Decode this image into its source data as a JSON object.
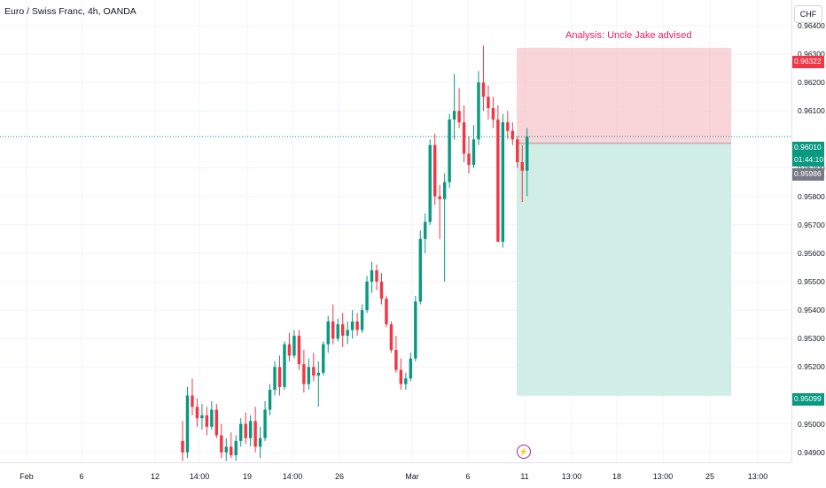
{
  "header": {
    "symbol_title": "Euro / Swiss Franc, 4h, OANDA",
    "currency_button": "CHF"
  },
  "annotation": {
    "text": "Analysis: Uncle Jake advised"
  },
  "price_axis": {
    "labels": [
      "0.96400",
      "0.96300",
      "0.96200",
      "0.96100",
      "0.95900",
      "0.95800",
      "0.95700",
      "0.95600",
      "0.95500",
      "0.95400",
      "0.95300",
      "0.95200",
      "0.95000",
      "0.94900"
    ],
    "tags": {
      "stop_loss": "0.96322",
      "current_price": "0.96010",
      "countdown": "01:44:10",
      "entry": "0.95986",
      "take_profit": "0.95099"
    }
  },
  "time_axis": {
    "labels": [
      "Feb",
      "6",
      "12",
      "14:00",
      "19",
      "14:00",
      "26",
      "Mar",
      "6",
      "11",
      "13:00",
      "18",
      "13:00",
      "25",
      "13:00"
    ]
  },
  "colors": {
    "up": "#089981",
    "down": "#f23645",
    "stop_zone": "#f7c5cc",
    "profit_zone": "#c9ebe2",
    "stop_tag": "#f23645",
    "price_tag": "#089981",
    "entry_tag": "#787b86",
    "annotation": "#e91e63"
  },
  "chart_data": {
    "type": "candlestick",
    "instrument": "Euro / Swiss Franc",
    "interval": "4h",
    "ylim": [
      0.94865,
      0.9649
    ],
    "position": {
      "stop_loss": 0.96322,
      "entry": 0.95986,
      "take_profit": 0.95099,
      "current_price": 0.9601
    },
    "candles": [
      [
        0.9494,
        0.9501,
        0.9487,
        0.949
      ],
      [
        0.949,
        0.9513,
        0.9488,
        0.951
      ],
      [
        0.951,
        0.9516,
        0.9503,
        0.9506
      ],
      [
        0.9506,
        0.9509,
        0.9499,
        0.9502
      ],
      [
        0.9502,
        0.9507,
        0.9498,
        0.9503
      ],
      [
        0.9503,
        0.9506,
        0.9496,
        0.9499
      ],
      [
        0.9499,
        0.9508,
        0.9498,
        0.9505
      ],
      [
        0.9505,
        0.9507,
        0.9495,
        0.9496
      ],
      [
        0.9496,
        0.95,
        0.9488,
        0.949
      ],
      [
        0.949,
        0.9495,
        0.9487,
        0.9492
      ],
      [
        0.9492,
        0.9497,
        0.9488,
        0.9489
      ],
      [
        0.9489,
        0.9496,
        0.9487,
        0.9494
      ],
      [
        0.9494,
        0.9502,
        0.9492,
        0.95
      ],
      [
        0.95,
        0.9504,
        0.9493,
        0.9495
      ],
      [
        0.9495,
        0.9503,
        0.9492,
        0.9501
      ],
      [
        0.9501,
        0.9506,
        0.949,
        0.9492
      ],
      [
        0.9492,
        0.9499,
        0.9488,
        0.9495
      ],
      [
        0.9495,
        0.9508,
        0.9494,
        0.9505
      ],
      [
        0.9505,
        0.9514,
        0.9503,
        0.9512
      ],
      [
        0.9512,
        0.9522,
        0.951,
        0.952
      ],
      [
        0.952,
        0.9524,
        0.951,
        0.9513
      ],
      [
        0.9513,
        0.9529,
        0.9512,
        0.9528
      ],
      [
        0.9528,
        0.9532,
        0.9522,
        0.9524
      ],
      [
        0.9524,
        0.9533,
        0.9523,
        0.9531
      ],
      [
        0.9531,
        0.9533,
        0.9519,
        0.9521
      ],
      [
        0.9521,
        0.9526,
        0.9511,
        0.9514
      ],
      [
        0.9514,
        0.9523,
        0.9512,
        0.952
      ],
      [
        0.952,
        0.9525,
        0.9515,
        0.9517
      ],
      [
        0.9517,
        0.9522,
        0.9506,
        0.9518
      ],
      [
        0.9518,
        0.9529,
        0.9517,
        0.9528
      ],
      [
        0.9528,
        0.9538,
        0.9525,
        0.9536
      ],
      [
        0.9536,
        0.9542,
        0.9528,
        0.953
      ],
      [
        0.953,
        0.9537,
        0.9529,
        0.9535
      ],
      [
        0.9535,
        0.9539,
        0.9527,
        0.9531
      ],
      [
        0.9531,
        0.9536,
        0.9528,
        0.9533
      ],
      [
        0.9533,
        0.954,
        0.953,
        0.9536
      ],
      [
        0.9536,
        0.9539,
        0.9531,
        0.9533
      ],
      [
        0.9533,
        0.9542,
        0.9532,
        0.954
      ],
      [
        0.954,
        0.9552,
        0.9539,
        0.955
      ],
      [
        0.955,
        0.9557,
        0.9546,
        0.9554
      ],
      [
        0.9554,
        0.9556,
        0.9547,
        0.955
      ],
      [
        0.955,
        0.9553,
        0.9542,
        0.9544
      ],
      [
        0.9544,
        0.9545,
        0.9534,
        0.9535
      ],
      [
        0.9535,
        0.9536,
        0.9525,
        0.9526
      ],
      [
        0.9526,
        0.9531,
        0.9518,
        0.9519
      ],
      [
        0.9519,
        0.9523,
        0.9512,
        0.9514
      ],
      [
        0.9514,
        0.9518,
        0.9512,
        0.9516
      ],
      [
        0.9516,
        0.9525,
        0.9515,
        0.9523
      ],
      [
        0.9523,
        0.9545,
        0.9522,
        0.9543
      ],
      [
        0.9543,
        0.9568,
        0.9542,
        0.9565
      ],
      [
        0.9565,
        0.9574,
        0.956,
        0.9571
      ],
      [
        0.9571,
        0.96,
        0.957,
        0.9598
      ],
      [
        0.9598,
        0.9602,
        0.9577,
        0.958
      ],
      [
        0.958,
        0.9584,
        0.9565,
        0.9579
      ],
      [
        0.9579,
        0.9588,
        0.955,
        0.9585
      ],
      [
        0.9585,
        0.9609,
        0.9583,
        0.9607
      ],
      [
        0.9607,
        0.9623,
        0.96,
        0.961
      ],
      [
        0.961,
        0.9618,
        0.9604,
        0.9606
      ],
      [
        0.9606,
        0.9612,
        0.9592,
        0.9595
      ],
      [
        0.9595,
        0.9601,
        0.9588,
        0.9591
      ],
      [
        0.9591,
        0.9605,
        0.959,
        0.96
      ],
      [
        0.96,
        0.9624,
        0.9598,
        0.962
      ],
      [
        0.962,
        0.9633,
        0.961,
        0.9615
      ],
      [
        0.9615,
        0.9619,
        0.9607,
        0.9611
      ],
      [
        0.9611,
        0.9615,
        0.9604,
        0.9607
      ],
      [
        0.9607,
        0.9612,
        0.9564,
        0.9564
      ],
      [
        0.9564,
        0.9609,
        0.9562,
        0.9606
      ],
      [
        0.9606,
        0.961,
        0.96,
        0.9603
      ],
      [
        0.9603,
        0.9606,
        0.9598,
        0.96
      ],
      [
        0.96,
        0.9601,
        0.959,
        0.9592
      ],
      [
        0.9592,
        0.9598,
        0.9578,
        0.9589
      ],
      [
        0.9589,
        0.9604,
        0.958,
        0.9601
      ]
    ]
  }
}
